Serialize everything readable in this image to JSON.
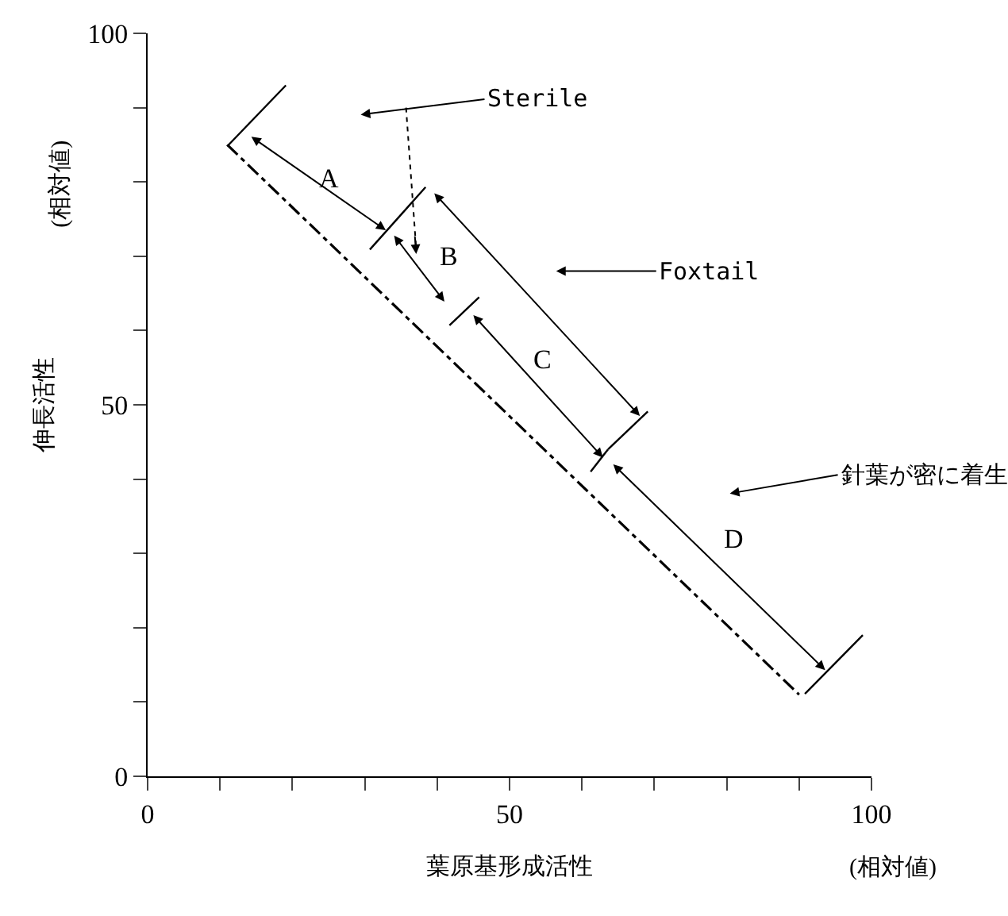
{
  "chart_data": {
    "type": "line",
    "xlabel": "葉原基形成活性",
    "ylabel": "伸長活性",
    "series": [
      {
        "color": "#000000",
        "x": [
          11,
          90
        ],
        "values": [
          85,
          11
        ],
        "line_style": "dashed"
      }
    ],
    "xlim": [
      0,
      100
    ],
    "ylim": [
      0,
      100
    ],
    "xticks": [
      0,
      {
        "value": 10,
        "label": null
      },
      {
        "value": 20,
        "label": null
      },
      {
        "value": 30,
        "label": null
      },
      {
        "value": 40,
        "label": null
      },
      50,
      {
        "value": 60,
        "label": null
      },
      {
        "value": 70,
        "label": null
      },
      {
        "value": 80,
        "label": null
      },
      {
        "value": 90,
        "label": null
      },
      100
    ],
    "yticks": [
      0,
      {
        "value": 10,
        "label": null
      },
      {
        "value": 20,
        "label": null
      },
      {
        "value": 30,
        "label": null
      },
      {
        "value": 40,
        "label": null
      },
      50,
      {
        "value": 60,
        "label": null
      },
      {
        "value": 70,
        "label": null
      },
      {
        "value": 80,
        "label": null
      },
      {
        "value": 90,
        "label": null
      },
      100
    ],
    "marker": "none",
    "annotations": [
      "A",
      "B",
      "C",
      "D",
      "Sterile",
      "Foxtail",
      "針葉が密に着生",
      "(相対値)",
      "(相対値)"
    ]
  }
}
